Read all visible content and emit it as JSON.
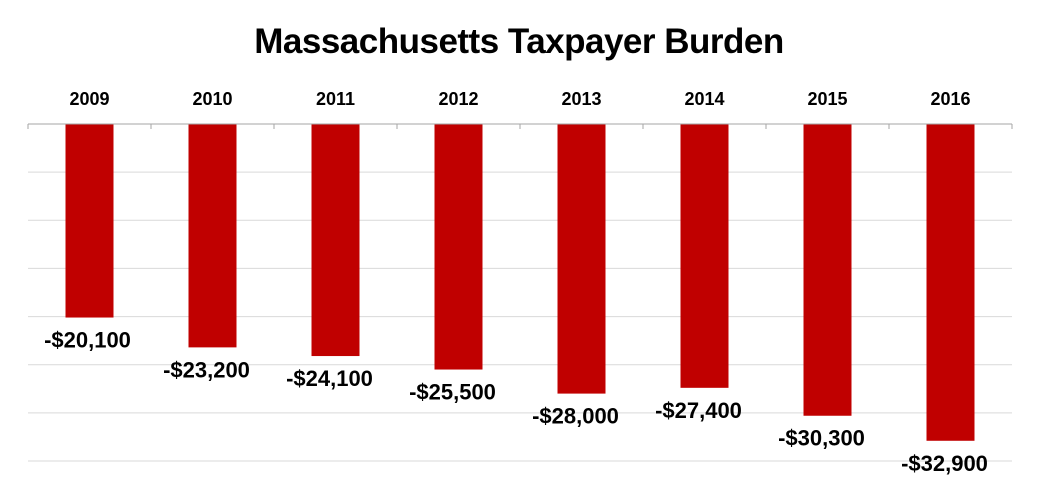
{
  "chart_data": {
    "type": "bar",
    "title": "Massachusetts Taxpayer Burden",
    "categories": [
      "2009",
      "2010",
      "2011",
      "2012",
      "2013",
      "2014",
      "2015",
      "2016"
    ],
    "values": [
      -20100,
      -23200,
      -24100,
      -25500,
      -28000,
      -27400,
      -30300,
      -32900
    ],
    "data_labels": [
      "-$20,100",
      "-$23,200",
      "-$24,100",
      "-$25,500",
      "-$28,000",
      "-$27,400",
      "-$30,300",
      "-$32,900"
    ],
    "ylim": [
      -35000,
      0
    ],
    "grid": true,
    "bar_color": "#c00000",
    "grid_color": "#d9d9d9",
    "axis_color": "#a6a6a6"
  }
}
